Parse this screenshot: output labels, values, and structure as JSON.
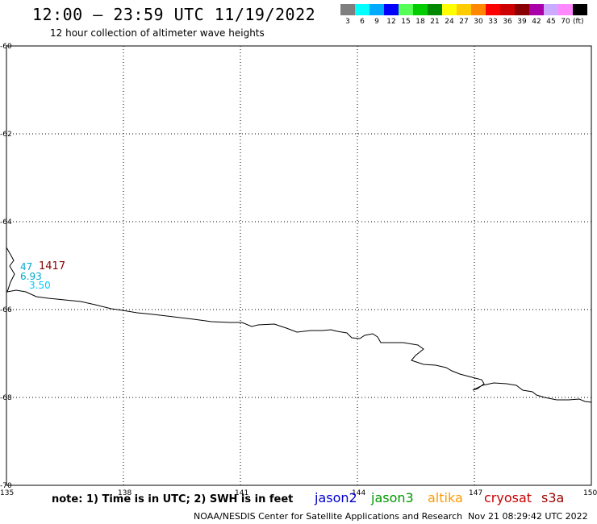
{
  "header": {
    "title": "12:00 – 23:59 UTC 11/19/2022",
    "subtitle": "12 hour collection of altimeter wave heights"
  },
  "legend": {
    "unit": "(ft)",
    "items": [
      {
        "label": "3",
        "color": "#7f7f7f"
      },
      {
        "label": "6",
        "color": "#00ffff"
      },
      {
        "label": "9",
        "color": "#00aaff"
      },
      {
        "label": "12",
        "color": "#0000ff"
      },
      {
        "label": "15",
        "color": "#55ff55"
      },
      {
        "label": "18",
        "color": "#00cc00"
      },
      {
        "label": "21",
        "color": "#008800"
      },
      {
        "label": "24",
        "color": "#ffff00"
      },
      {
        "label": "27",
        "color": "#ffcc00"
      },
      {
        "label": "30",
        "color": "#ff8800"
      },
      {
        "label": "33",
        "color": "#ff0000"
      },
      {
        "label": "36",
        "color": "#cc0000"
      },
      {
        "label": "39",
        "color": "#880000"
      },
      {
        "label": "42",
        "color": "#aa00aa"
      },
      {
        "label": "45",
        "color": "#ccaaff"
      },
      {
        "label": "70",
        "color": "#ff88ff"
      },
      {
        "label": "",
        "color": "#000000"
      }
    ]
  },
  "axes": {
    "lat_labels": [
      "-60",
      "-62",
      "-64",
      "-66",
      "-68",
      "-70"
    ],
    "lon_labels": [
      "135",
      "138",
      "141",
      "144",
      "147",
      "150"
    ],
    "lat_range": [
      -70,
      -60
    ],
    "lon_range": [
      135,
      150
    ],
    "grid": "dotted"
  },
  "observations": [
    {
      "text": "47",
      "color": "#00aacc"
    },
    {
      "text": "1417",
      "color": "#880000"
    },
    {
      "text": "6.93",
      "color": "#00aacc"
    },
    {
      "text": "3.50",
      "color": "#00ccff"
    }
  ],
  "footer": {
    "note": "note:  1) Time is in UTC;  2) SWH is in feet",
    "credit": "NOAA/NESDIS Center for Satellite Applications and Research",
    "timestamp": "Nov 21 08:29:42 UTC 2022",
    "satellites": [
      {
        "name": "jason2",
        "color": "#0000cc"
      },
      {
        "name": "jason3",
        "color": "#009900"
      },
      {
        "name": "altika",
        "color": "#ff9900"
      },
      {
        "name": "cryosat",
        "color": "#cc0000"
      },
      {
        "name": "s3a",
        "color": "#990000"
      }
    ]
  }
}
